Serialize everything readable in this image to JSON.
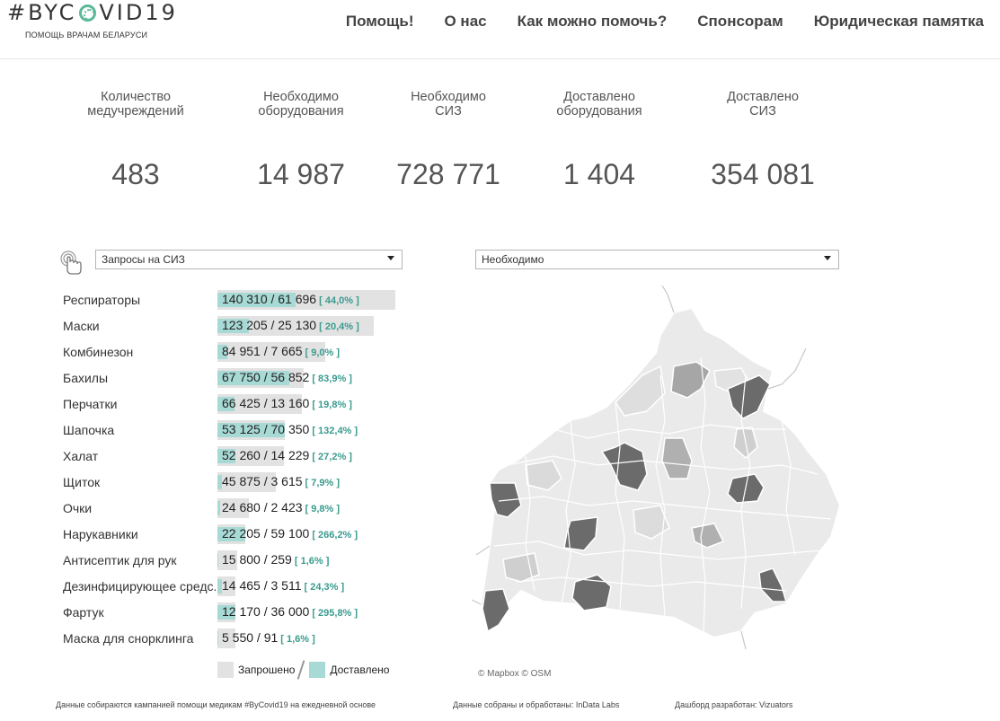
{
  "header": {
    "logo_text_pre": "#BYC",
    "logo_text_post": "VID19",
    "logo_sub": "ПОМОЩЬ ВРАЧАМ БЕЛАРУСИ",
    "nav": [
      "Помощь!",
      "О нас",
      "Как можно помочь?",
      "Спонсорам",
      "Юридическая памятка"
    ]
  },
  "kpis": [
    {
      "label": "Количество\nмедучреждений",
      "value": "483"
    },
    {
      "label": "Необходимо\nоборудования",
      "value": "14 987"
    },
    {
      "label": "Необходимо\nСИЗ",
      "value": "728 771"
    },
    {
      "label": "Доставлено\nоборудования",
      "value": "1 404"
    },
    {
      "label": "Доставлено\nСИЗ",
      "value": "354 081"
    }
  ],
  "filters": {
    "left_select": "Запросы на СИЗ",
    "right_select": "Необходимо"
  },
  "table": [
    {
      "name": "Респираторы",
      "requested": 140310,
      "delivered": 61696,
      "text": "140 310 / 61 696",
      "pct": "[ 44,0% ]"
    },
    {
      "name": "Маски",
      "requested": 123205,
      "delivered": 25130,
      "text": "123 205 / 25 130",
      "pct": "[ 20,4% ]"
    },
    {
      "name": "Комбинезон",
      "requested": 84951,
      "delivered": 7665,
      "text": "84 951 / 7 665",
      "pct": "[ 9,0% ]"
    },
    {
      "name": "Бахилы",
      "requested": 67750,
      "delivered": 56852,
      "text": "67 750 / 56 852",
      "pct": "[ 83,9% ]"
    },
    {
      "name": "Перчатки",
      "requested": 66425,
      "delivered": 13160,
      "text": "66 425 / 13 160",
      "pct": "[ 19,8% ]"
    },
    {
      "name": "Шапочка",
      "requested": 53125,
      "delivered": 70350,
      "text": "53 125 / 70 350",
      "pct": "[ 132,4% ]"
    },
    {
      "name": "Халат",
      "requested": 52260,
      "delivered": 14229,
      "text": "52 260 / 14 229",
      "pct": "[ 27,2% ]"
    },
    {
      "name": "Щиток",
      "requested": 45875,
      "delivered": 3615,
      "text": "45 875 / 3 615",
      "pct": "[ 7,9% ]"
    },
    {
      "name": "Очки",
      "requested": 24680,
      "delivered": 2423,
      "text": "24 680 / 2 423",
      "pct": "[ 9,8% ]"
    },
    {
      "name": "Нарукавники",
      "requested": 22205,
      "delivered": 59100,
      "text": "22 205 / 59 100",
      "pct": "[ 266,2% ]"
    },
    {
      "name": "Антисептик для рук",
      "requested": 15800,
      "delivered": 259,
      "text": "15 800 / 259",
      "pct": "[ 1,6% ]"
    },
    {
      "name": "Дезинфицирующее средс..",
      "requested": 14465,
      "delivered": 3511,
      "text": "14 465 / 3 511",
      "pct": "[ 24,3% ]"
    },
    {
      "name": "Фартук",
      "requested": 12170,
      "delivered": 36000,
      "text": "12 170 / 36 000",
      "pct": "[ 295,8% ]"
    },
    {
      "name": "Маска для снорклинга",
      "requested": 5550,
      "delivered": 91,
      "text": "5 550 / 91",
      "pct": "[ 1,6% ]"
    }
  ],
  "legend": {
    "requested": "Запрошено",
    "delivered": "Доставлено",
    "requested_color": "#e2e2e2",
    "delivered_color": "#a7d9d5"
  },
  "map": {
    "attribution": "© Mapbox  © OSM"
  },
  "footer": {
    "left": "Данные собираются кампанией помощи медикам #ByCovid19 на ежедневной основе",
    "middle": "Данные собраны и обработаны: InData Labs",
    "right": "Дашборд разработан: Vizuators"
  }
}
